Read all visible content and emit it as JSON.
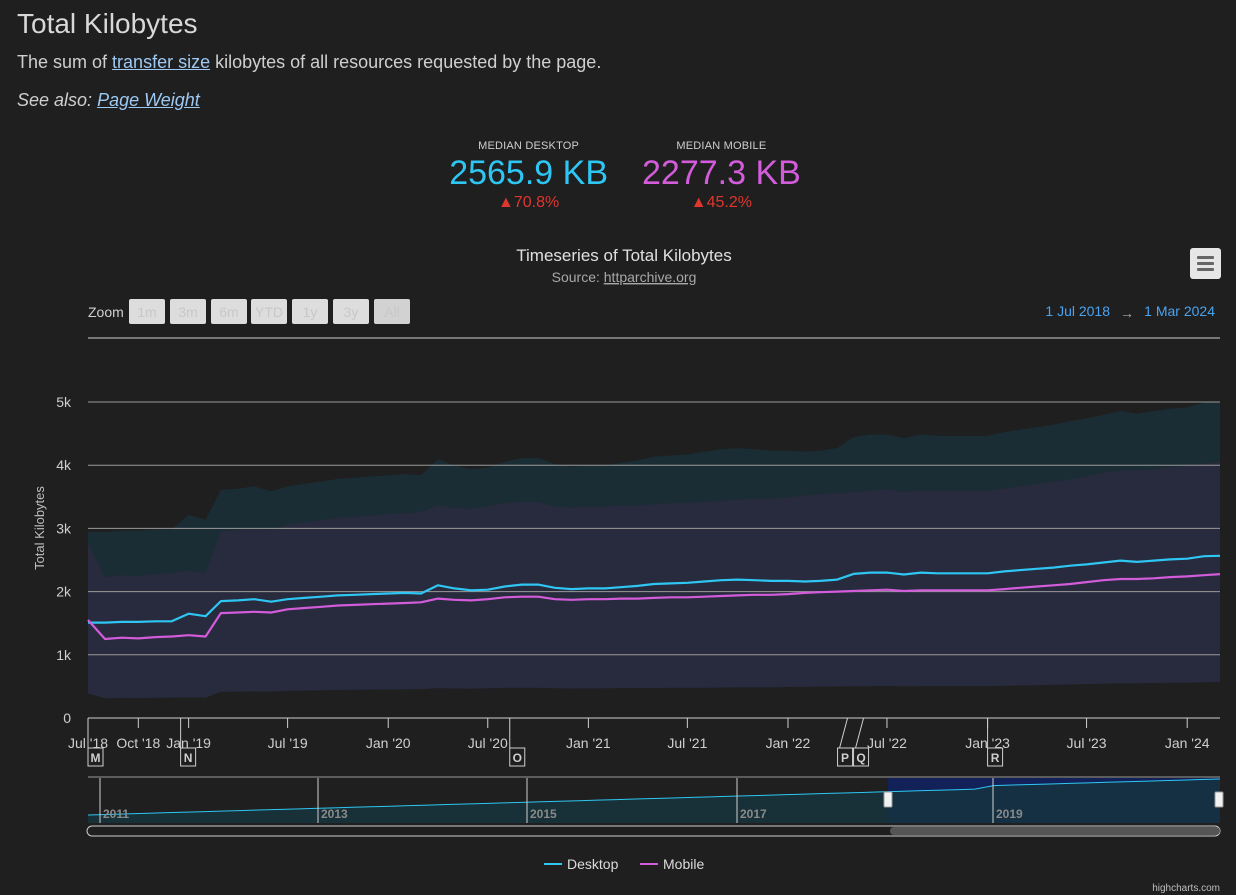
{
  "header": {
    "title": "Total Kilobytes",
    "desc_before": "The sum of ",
    "desc_link": "transfer size",
    "desc_after": " kilobytes of all resources requested by the page.",
    "see_also_label": "See also: ",
    "see_also_link": "Page Weight"
  },
  "kpis": [
    {
      "label": "MEDIAN DESKTOP",
      "value": "2565.9 KB",
      "change": "▲70.8%",
      "color": "#2ec6f2"
    },
    {
      "label": "MEDIAN MOBILE",
      "value": "2277.3 KB",
      "change": "▲45.2%",
      "color": "#d35cdb"
    }
  ],
  "toolbar": {
    "zoom_label": "Zoom",
    "zoom_buttons": [
      "1m",
      "3m",
      "6m",
      "YTD",
      "1y",
      "3y",
      "All"
    ],
    "range_from": "1 Jul 2018",
    "range_arrow": "→",
    "range_to": "1 Mar 2024"
  },
  "icons": {
    "menu": "hamburger-menu-icon"
  },
  "credits": "highcharts.com",
  "chart_data": {
    "type": "line",
    "title": "Timeseries of Total Kilobytes",
    "subtitle_prefix": "Source: ",
    "subtitle_link": "httparchive.org",
    "ylabel": "Total Kilobytes",
    "ylim": [
      0,
      5000
    ],
    "yticks": [
      0,
      1000,
      2000,
      3000,
      4000,
      5000
    ],
    "ytick_labels": [
      "0",
      "1k",
      "2k",
      "3k",
      "4k",
      "5k"
    ],
    "xlim": [
      "2018-07-01",
      "2024-03-01"
    ],
    "xticks": [
      "2018-07-01",
      "2018-10-01",
      "2019-01-01",
      "2019-07-01",
      "2020-01-01",
      "2020-07-01",
      "2021-01-01",
      "2021-07-01",
      "2022-01-01",
      "2022-07-01",
      "2023-01-01",
      "2023-07-01",
      "2024-01-01"
    ],
    "xtick_labels": [
      "Jul '18",
      "Oct '18",
      "Jan '19",
      "Jul '19",
      "Jan '20",
      "Jul '20",
      "Jan '21",
      "Jul '21",
      "Jan '22",
      "Jul '22",
      "Jan '23",
      "Jul '23",
      "Jan '24"
    ],
    "grid": true,
    "legend_position": "bottom-center",
    "series": [
      {
        "name": "Desktop",
        "color": "#2ec6f2",
        "x": [
          "2018-07-01",
          "2018-08-01",
          "2018-09-01",
          "2018-10-01",
          "2018-11-01",
          "2018-12-01",
          "2019-01-01",
          "2019-02-01",
          "2019-03-01",
          "2019-04-01",
          "2019-05-01",
          "2019-06-01",
          "2019-07-01",
          "2019-08-01",
          "2019-09-01",
          "2019-10-01",
          "2019-11-01",
          "2019-12-01",
          "2020-01-01",
          "2020-02-01",
          "2020-03-01",
          "2020-04-01",
          "2020-05-01",
          "2020-06-01",
          "2020-07-01",
          "2020-08-01",
          "2020-09-01",
          "2020-10-01",
          "2020-11-01",
          "2020-12-01",
          "2021-01-01",
          "2021-02-01",
          "2021-03-01",
          "2021-04-01",
          "2021-05-01",
          "2021-06-01",
          "2021-07-01",
          "2021-08-01",
          "2021-09-01",
          "2021-10-01",
          "2021-11-01",
          "2021-12-01",
          "2022-01-01",
          "2022-02-01",
          "2022-03-01",
          "2022-04-01",
          "2022-05-01",
          "2022-06-01",
          "2022-07-01",
          "2022-08-01",
          "2022-09-01",
          "2022-10-01",
          "2022-11-01",
          "2022-12-01",
          "2023-01-01",
          "2023-02-01",
          "2023-03-01",
          "2023-04-01",
          "2023-05-01",
          "2023-06-01",
          "2023-07-01",
          "2023-08-01",
          "2023-09-01",
          "2023-10-01",
          "2023-11-01",
          "2023-12-01",
          "2024-01-01",
          "2024-02-01",
          "2024-03-01"
        ],
        "values": [
          1510,
          1510,
          1520,
          1520,
          1530,
          1530,
          1650,
          1610,
          1850,
          1860,
          1880,
          1840,
          1880,
          1900,
          1920,
          1940,
          1950,
          1960,
          1970,
          1980,
          1970,
          2100,
          2050,
          2020,
          2030,
          2080,
          2110,
          2110,
          2060,
          2040,
          2050,
          2050,
          2070,
          2090,
          2120,
          2130,
          2140,
          2160,
          2180,
          2190,
          2180,
          2170,
          2170,
          2160,
          2170,
          2190,
          2280,
          2300,
          2300,
          2270,
          2300,
          2290,
          2290,
          2290,
          2290,
          2320,
          2340,
          2360,
          2380,
          2410,
          2430,
          2460,
          2490,
          2470,
          2490,
          2510,
          2520,
          2560,
          2566
        ]
      },
      {
        "name": "Mobile",
        "color": "#d35cdb",
        "x": [
          "2018-07-01",
          "2018-08-01",
          "2018-09-01",
          "2018-10-01",
          "2018-11-01",
          "2018-12-01",
          "2019-01-01",
          "2019-02-01",
          "2019-03-01",
          "2019-04-01",
          "2019-05-01",
          "2019-06-01",
          "2019-07-01",
          "2019-08-01",
          "2019-09-01",
          "2019-10-01",
          "2019-11-01",
          "2019-12-01",
          "2020-01-01",
          "2020-02-01",
          "2020-03-01",
          "2020-04-01",
          "2020-05-01",
          "2020-06-01",
          "2020-07-01",
          "2020-08-01",
          "2020-09-01",
          "2020-10-01",
          "2020-11-01",
          "2020-12-01",
          "2021-01-01",
          "2021-02-01",
          "2021-03-01",
          "2021-04-01",
          "2021-05-01",
          "2021-06-01",
          "2021-07-01",
          "2021-08-01",
          "2021-09-01",
          "2021-10-01",
          "2021-11-01",
          "2021-12-01",
          "2022-01-01",
          "2022-02-01",
          "2022-03-01",
          "2022-04-01",
          "2022-05-01",
          "2022-06-01",
          "2022-07-01",
          "2022-08-01",
          "2022-09-01",
          "2022-10-01",
          "2022-11-01",
          "2022-12-01",
          "2023-01-01",
          "2023-02-01",
          "2023-03-01",
          "2023-04-01",
          "2023-05-01",
          "2023-06-01",
          "2023-07-01",
          "2023-08-01",
          "2023-09-01",
          "2023-10-01",
          "2023-11-01",
          "2023-12-01",
          "2024-01-01",
          "2024-02-01",
          "2024-03-01"
        ],
        "values": [
          1550,
          1250,
          1270,
          1260,
          1280,
          1290,
          1310,
          1290,
          1660,
          1670,
          1680,
          1670,
          1720,
          1740,
          1760,
          1780,
          1790,
          1800,
          1810,
          1820,
          1830,
          1890,
          1870,
          1860,
          1880,
          1910,
          1920,
          1920,
          1880,
          1870,
          1880,
          1880,
          1890,
          1890,
          1900,
          1910,
          1910,
          1920,
          1930,
          1940,
          1950,
          1950,
          1960,
          1980,
          1990,
          2000,
          2010,
          2020,
          2030,
          2010,
          2020,
          2020,
          2020,
          2020,
          2020,
          2040,
          2060,
          2080,
          2100,
          2120,
          2150,
          2180,
          2200,
          2200,
          2210,
          2230,
          2240,
          2260,
          2277
        ]
      }
    ],
    "annotations": [
      {
        "letter": "M",
        "x": "2018-07-01"
      },
      {
        "letter": "N",
        "x": "2019-01-01"
      },
      {
        "letter": "O",
        "x": "2020-07-01"
      },
      {
        "letter": "P",
        "x": "2022-06-01"
      },
      {
        "letter": "Q",
        "x": "2022-06-01"
      },
      {
        "letter": "R",
        "x": "2023-01-01"
      }
    ],
    "navigator_labels": [
      "2011",
      "2013",
      "2015",
      "2017",
      "2019"
    ]
  }
}
